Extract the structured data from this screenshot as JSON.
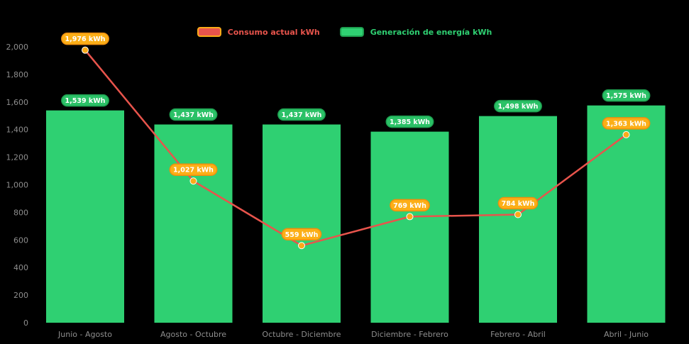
{
  "chart": {
    "background": "#000000",
    "axis_text_color": "#8e8e8e",
    "legend": [
      {
        "label": "Consumo actual kWh",
        "swatch_fill": "#e8544c",
        "swatch_border": "#fbab18",
        "text_color": "#e8544c"
      },
      {
        "label": "Generación de energía kWh",
        "swatch_fill": "#2fd072",
        "swatch_border": "#1d9e4f",
        "text_color": "#2fd072"
      }
    ]
  },
  "chart_data": {
    "type": "bar",
    "subtype": "combo-bar-line",
    "categories": [
      "Junio - Agosto",
      "Agosto - Octubre",
      "Octubre - Diciembre",
      "Diciembre - Febrero",
      "Febrero - Abril",
      "Abril - Junio"
    ],
    "series": [
      {
        "name": "Generación de energía kWh",
        "render": "bar",
        "values": [
          1539,
          1437,
          1437,
          1385,
          1498,
          1575
        ],
        "labels": [
          "1,539 kWh",
          "1,437 kWh",
          "1,437 kWh",
          "1,385 kWh",
          "1,498 kWh",
          "1,575 kWh"
        ],
        "color": "#2fd072",
        "badge_fill": "#2bc167",
        "badge_border": "#1d9e4f"
      },
      {
        "name": "Consumo actual kWh",
        "render": "line",
        "values": [
          1976,
          1027,
          559,
          769,
          784,
          1363
        ],
        "labels": [
          "1,976 kWh",
          "1,027 kWh",
          "559 kWh",
          "769 kWh",
          "784 kWh",
          "1,363 kWh"
        ],
        "color": "#e8544c",
        "marker_color": "#fbab18",
        "badge_fill": "#fcaf17",
        "badge_border": "#ef8e0e"
      }
    ],
    "y_ticks": [
      "0",
      "200",
      "400",
      "600",
      "800",
      "1,000",
      "1,200",
      "1,400",
      "1,600",
      "1,800",
      "2,000"
    ],
    "y_tick_values": [
      0,
      200,
      400,
      600,
      800,
      1000,
      1200,
      1400,
      1600,
      1800,
      2000
    ],
    "ylim": [
      0,
      2000
    ],
    "grid": false,
    "title": "",
    "xlabel": "",
    "ylabel": "",
    "legend_position": "top-center"
  }
}
